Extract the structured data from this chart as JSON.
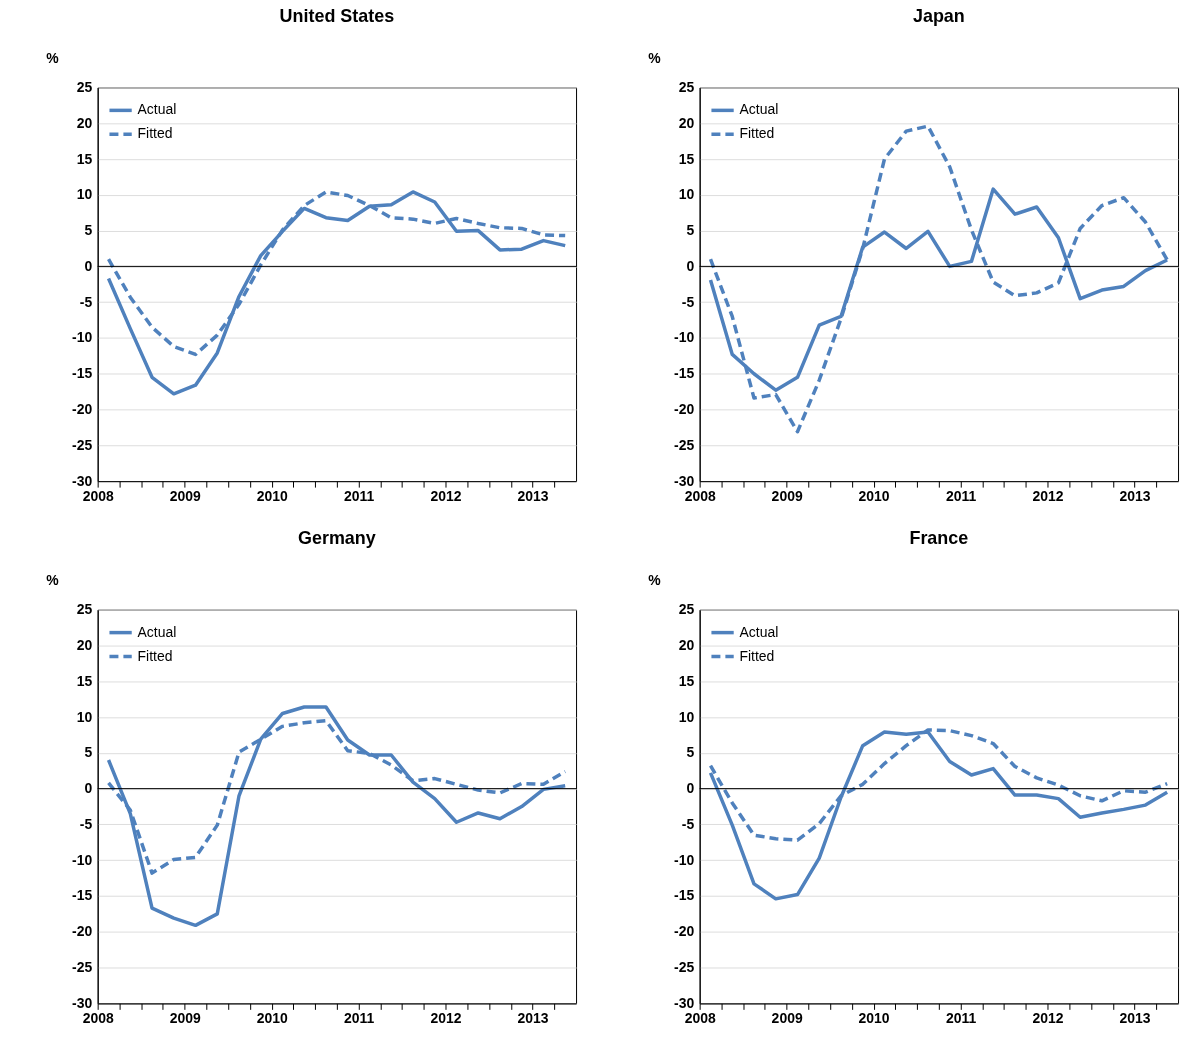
{
  "chart_data": [
    {
      "type": "line",
      "title": "United States",
      "ylabel": "%",
      "grid": "y",
      "legend": "top left",
      "x": [
        2008.625,
        2008.875,
        2009.125,
        2009.375,
        2009.625,
        2009.875,
        2010.125,
        2010.375,
        2010.625,
        2010.875,
        2011.125,
        2011.375,
        2011.625,
        2011.875,
        2012.125,
        2012.375,
        2012.625,
        2012.875,
        2013.125,
        2013.375,
        2013.625,
        2013.875
      ],
      "series": [
        {
          "name": "Actual",
          "color": "#4f81bd",
          "line_style": "solid",
          "values": [
            -1.7,
            -8.7,
            -15.5,
            -17.8,
            -16.6,
            -12.1,
            -4.2,
            1.5,
            4.9,
            8.1,
            6.8,
            6.4,
            8.4,
            8.6,
            10.4,
            9.0,
            4.9,
            5.0,
            2.3,
            2.4,
            3.6,
            2.9
          ]
        },
        {
          "name": "Fitted",
          "color": "#4f81bd",
          "line_style": "dashed",
          "values": [
            1.0,
            -4.3,
            -8.5,
            -11.2,
            -12.3,
            -9.6,
            -5.3,
            0.2,
            5.1,
            8.5,
            10.4,
            9.9,
            8.5,
            6.8,
            6.6,
            6.0,
            6.7,
            6.0,
            5.4,
            5.3,
            4.4,
            4.3
          ]
        }
      ],
      "xlim": [
        2008.5,
        2014
      ],
      "xticks": [
        {
          "value": 2008.5,
          "label": "2008"
        },
        {
          "value": 2008.75,
          "label": null
        },
        {
          "value": 2009,
          "label": null
        },
        {
          "value": 2009.25,
          "label": null
        },
        {
          "value": 2009.5,
          "label": "2009"
        },
        {
          "value": 2009.75,
          "label": null
        },
        {
          "value": 2010,
          "label": null
        },
        {
          "value": 2010.25,
          "label": null
        },
        {
          "value": 2010.5,
          "label": "2010"
        },
        {
          "value": 2010.75,
          "label": null
        },
        {
          "value": 2011,
          "label": null
        },
        {
          "value": 2011.25,
          "label": null
        },
        {
          "value": 2011.5,
          "label": "2011"
        },
        {
          "value": 2011.75,
          "label": null
        },
        {
          "value": 2012,
          "label": null
        },
        {
          "value": 2012.25,
          "label": null
        },
        {
          "value": 2012.5,
          "label": "2012"
        },
        {
          "value": 2012.75,
          "label": null
        },
        {
          "value": 2013,
          "label": null
        },
        {
          "value": 2013.25,
          "label": null
        },
        {
          "value": 2013.5,
          "label": "2013"
        },
        {
          "value": 2013.75,
          "label": null
        }
      ],
      "ylim": [
        -30,
        25
      ],
      "yticks": [
        -30,
        -25,
        -20,
        -15,
        -10,
        -5,
        0,
        5,
        10,
        15,
        20,
        25
      ],
      "ref_lines": [
        {
          "axis": "y",
          "value": 0,
          "color": "#000000"
        }
      ]
    },
    {
      "type": "line",
      "title": "Japan",
      "ylabel": "%",
      "grid": "y",
      "legend": "top left",
      "x": [
        2008.625,
        2008.875,
        2009.125,
        2009.375,
        2009.625,
        2009.875,
        2010.125,
        2010.375,
        2010.625,
        2010.875,
        2011.125,
        2011.375,
        2011.625,
        2011.875,
        2012.125,
        2012.375,
        2012.625,
        2012.875,
        2013.125,
        2013.375,
        2013.625,
        2013.875
      ],
      "series": [
        {
          "name": "Actual",
          "color": "#4f81bd",
          "line_style": "solid",
          "values": [
            -1.9,
            -12.3,
            -15.0,
            -17.3,
            -15.5,
            -8.2,
            -7.0,
            2.7,
            4.8,
            2.5,
            4.9,
            0.0,
            0.7,
            10.8,
            7.3,
            8.3,
            4.0,
            -4.5,
            -3.3,
            -2.8,
            -0.6,
            0.9
          ]
        },
        {
          "name": "Fitted",
          "color": "#4f81bd",
          "line_style": "dashed",
          "values": [
            1.0,
            -7.0,
            -18.4,
            -17.9,
            -23.1,
            -15.9,
            -7.3,
            2.5,
            15.0,
            18.9,
            19.6,
            13.9,
            5.1,
            -2.2,
            -4.1,
            -3.7,
            -2.3,
            5.3,
            8.5,
            9.6,
            6.2,
            0.9
          ]
        }
      ],
      "xlim": [
        2008.5,
        2014
      ],
      "xticks": [
        {
          "value": 2008.5,
          "label": "2008"
        },
        {
          "value": 2008.75,
          "label": null
        },
        {
          "value": 2009,
          "label": null
        },
        {
          "value": 2009.25,
          "label": null
        },
        {
          "value": 2009.5,
          "label": "2009"
        },
        {
          "value": 2009.75,
          "label": null
        },
        {
          "value": 2010,
          "label": null
        },
        {
          "value": 2010.25,
          "label": null
        },
        {
          "value": 2010.5,
          "label": "2010"
        },
        {
          "value": 2010.75,
          "label": null
        },
        {
          "value": 2011,
          "label": null
        },
        {
          "value": 2011.25,
          "label": null
        },
        {
          "value": 2011.5,
          "label": "2011"
        },
        {
          "value": 2011.75,
          "label": null
        },
        {
          "value": 2012,
          "label": null
        },
        {
          "value": 2012.25,
          "label": null
        },
        {
          "value": 2012.5,
          "label": "2012"
        },
        {
          "value": 2012.75,
          "label": null
        },
        {
          "value": 2013,
          "label": null
        },
        {
          "value": 2013.25,
          "label": null
        },
        {
          "value": 2013.5,
          "label": "2013"
        },
        {
          "value": 2013.75,
          "label": null
        }
      ],
      "ylim": [
        -30,
        25
      ],
      "yticks": [
        -30,
        -25,
        -20,
        -15,
        -10,
        -5,
        0,
        5,
        10,
        15,
        20,
        25
      ],
      "ref_lines": [
        {
          "axis": "y",
          "value": 0,
          "color": "#000000"
        }
      ]
    },
    {
      "type": "line",
      "title": "Germany",
      "ylabel": "%",
      "grid": "y",
      "legend": "top left",
      "x": [
        2008.625,
        2008.875,
        2009.125,
        2009.375,
        2009.625,
        2009.875,
        2010.125,
        2010.375,
        2010.625,
        2010.875,
        2011.125,
        2011.375,
        2011.625,
        2011.875,
        2012.125,
        2012.375,
        2012.625,
        2012.875,
        2013.125,
        2013.375,
        2013.625,
        2013.875
      ],
      "series": [
        {
          "name": "Actual",
          "color": "#4f81bd",
          "line_style": "solid",
          "values": [
            4.0,
            -3.5,
            -16.7,
            -18.1,
            -19.1,
            -17.5,
            -1.0,
            6.9,
            10.5,
            11.4,
            11.4,
            6.8,
            4.7,
            4.7,
            0.9,
            -1.4,
            -4.7,
            -3.4,
            -4.2,
            -2.5,
            -0.1,
            0.4
          ]
        },
        {
          "name": "Fitted",
          "color": "#4f81bd",
          "line_style": "dashed",
          "values": [
            0.8,
            -3.0,
            -11.8,
            -9.9,
            -9.6,
            -5.1,
            5.1,
            6.9,
            8.7,
            9.2,
            9.5,
            5.3,
            4.9,
            3.3,
            1.1,
            1.4,
            0.6,
            -0.2,
            -0.6,
            0.7,
            0.6,
            2.4
          ]
        }
      ],
      "xlim": [
        2008.5,
        2014
      ],
      "xticks": [
        {
          "value": 2008.5,
          "label": "2008"
        },
        {
          "value": 2008.75,
          "label": null
        },
        {
          "value": 2009,
          "label": null
        },
        {
          "value": 2009.25,
          "label": null
        },
        {
          "value": 2009.5,
          "label": "2009"
        },
        {
          "value": 2009.75,
          "label": null
        },
        {
          "value": 2010,
          "label": null
        },
        {
          "value": 2010.25,
          "label": null
        },
        {
          "value": 2010.5,
          "label": "2010"
        },
        {
          "value": 2010.75,
          "label": null
        },
        {
          "value": 2011,
          "label": null
        },
        {
          "value": 2011.25,
          "label": null
        },
        {
          "value": 2011.5,
          "label": "2011"
        },
        {
          "value": 2011.75,
          "label": null
        },
        {
          "value": 2012,
          "label": null
        },
        {
          "value": 2012.25,
          "label": null
        },
        {
          "value": 2012.5,
          "label": "2012"
        },
        {
          "value": 2012.75,
          "label": null
        },
        {
          "value": 2013,
          "label": null
        },
        {
          "value": 2013.25,
          "label": null
        },
        {
          "value": 2013.5,
          "label": "2013"
        },
        {
          "value": 2013.75,
          "label": null
        }
      ],
      "ylim": [
        -30,
        25
      ],
      "yticks": [
        -30,
        -25,
        -20,
        -15,
        -10,
        -5,
        0,
        5,
        10,
        15,
        20,
        25
      ],
      "ref_lines": [
        {
          "axis": "y",
          "value": 0,
          "color": "#000000"
        }
      ]
    },
    {
      "type": "line",
      "title": "France",
      "ylabel": "%",
      "grid": "y",
      "legend": "top left",
      "x": [
        2008.625,
        2008.875,
        2009.125,
        2009.375,
        2009.625,
        2009.875,
        2010.125,
        2010.375,
        2010.625,
        2010.875,
        2011.125,
        2011.375,
        2011.625,
        2011.875,
        2012.125,
        2012.375,
        2012.625,
        2012.875,
        2013.125,
        2013.375,
        2013.625,
        2013.875
      ],
      "series": [
        {
          "name": "Actual",
          "color": "#4f81bd",
          "line_style": "solid",
          "values": [
            2.2,
            -5.1,
            -13.3,
            -15.4,
            -14.8,
            -9.7,
            -1.2,
            6.0,
            7.9,
            7.6,
            7.9,
            3.8,
            1.9,
            2.8,
            -0.9,
            -0.9,
            -1.4,
            -4.0,
            -3.4,
            -2.9,
            -2.3,
            -0.5
          ]
        },
        {
          "name": "Fitted",
          "color": "#4f81bd",
          "line_style": "dashed",
          "values": [
            3.2,
            -2.0,
            -6.5,
            -7.0,
            -7.2,
            -4.9,
            -1.0,
            0.6,
            3.5,
            6.0,
            8.2,
            8.1,
            7.4,
            6.3,
            3.1,
            1.5,
            0.5,
            -1.0,
            -1.7,
            -0.3,
            -0.5,
            0.7
          ]
        }
      ],
      "xlim": [
        2008.5,
        2014
      ],
      "xticks": [
        {
          "value": 2008.5,
          "label": "2008"
        },
        {
          "value": 2008.75,
          "label": null
        },
        {
          "value": 2009,
          "label": null
        },
        {
          "value": 2009.25,
          "label": null
        },
        {
          "value": 2009.5,
          "label": "2009"
        },
        {
          "value": 2009.75,
          "label": null
        },
        {
          "value": 2010,
          "label": null
        },
        {
          "value": 2010.25,
          "label": null
        },
        {
          "value": 2010.5,
          "label": "2010"
        },
        {
          "value": 2010.75,
          "label": null
        },
        {
          "value": 2011,
          "label": null
        },
        {
          "value": 2011.25,
          "label": null
        },
        {
          "value": 2011.5,
          "label": "2011"
        },
        {
          "value": 2011.75,
          "label": null
        },
        {
          "value": 2012,
          "label": null
        },
        {
          "value": 2012.25,
          "label": null
        },
        {
          "value": 2012.5,
          "label": "2012"
        },
        {
          "value": 2012.75,
          "label": null
        },
        {
          "value": 2013,
          "label": null
        },
        {
          "value": 2013.25,
          "label": null
        },
        {
          "value": 2013.5,
          "label": "2013"
        },
        {
          "value": 2013.75,
          "label": null
        }
      ],
      "ylim": [
        -30,
        25
      ],
      "yticks": [
        -30,
        -25,
        -20,
        -15,
        -10,
        -5,
        0,
        5,
        10,
        15,
        20,
        25
      ],
      "ref_lines": [
        {
          "axis": "y",
          "value": 0,
          "color": "#000000"
        }
      ]
    }
  ]
}
